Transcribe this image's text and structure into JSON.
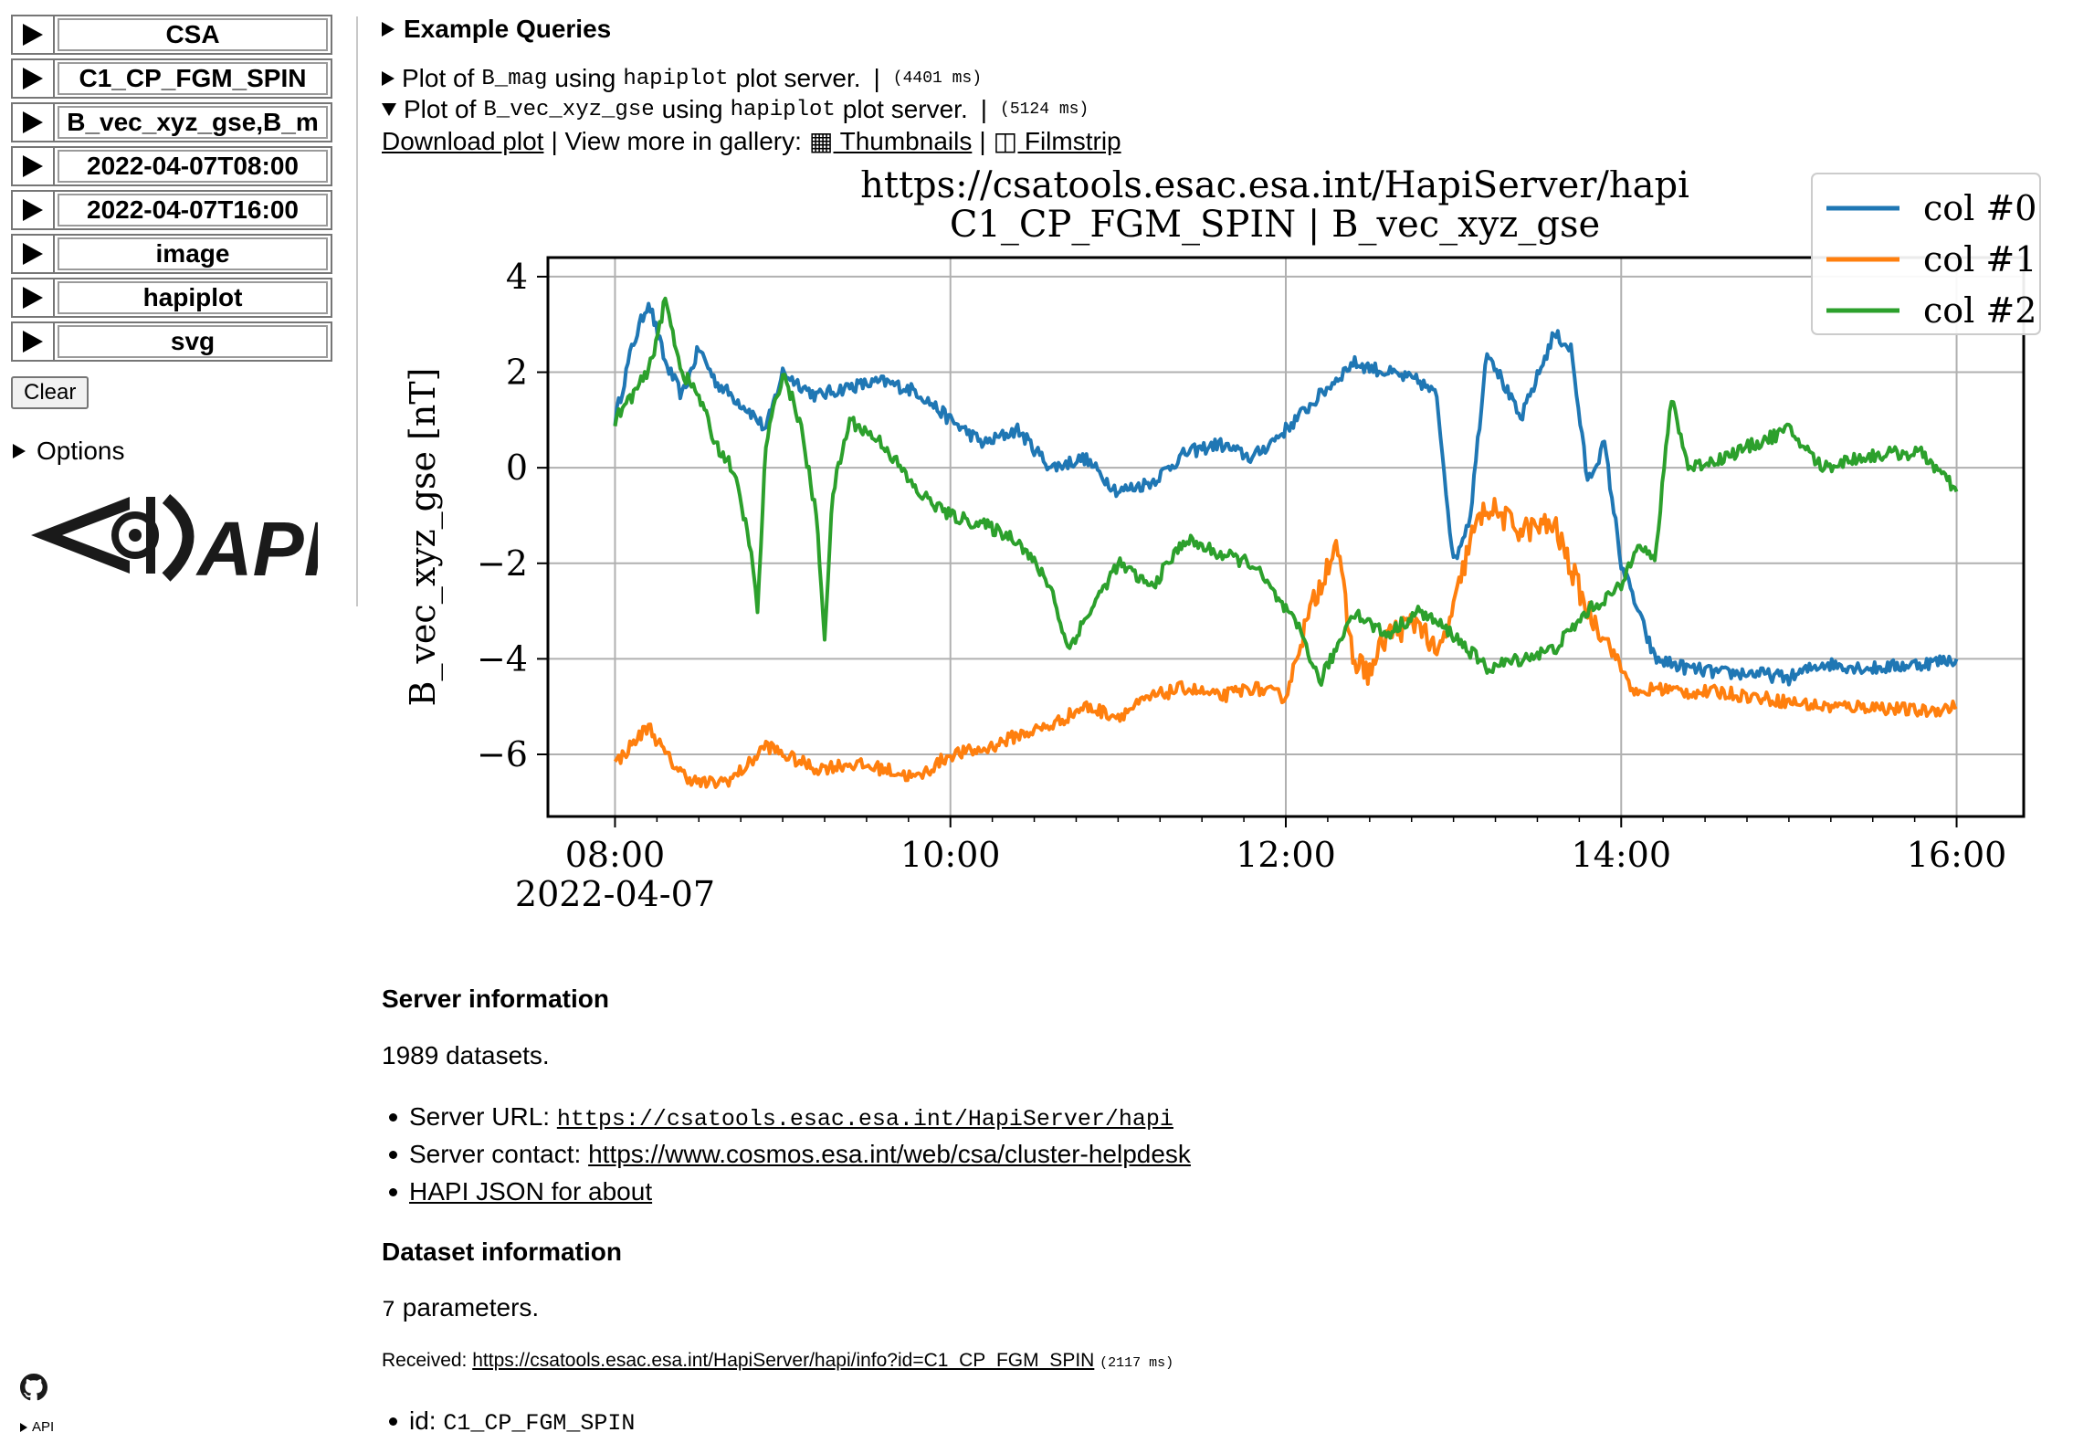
{
  "sidebar": {
    "selects": [
      "CSA",
      "C1_CP_FGM_SPIN",
      "B_vec_xyz_gse,B_m",
      "2022-04-07T08:00",
      "2022-04-07T16:00",
      "image",
      "hapiplot",
      "svg"
    ],
    "clear_label": "Clear",
    "options_label": "Options",
    "logo_text": "API",
    "footer_api_label": "API"
  },
  "examples": {
    "heading": "Example Queries",
    "q1": {
      "prefix": "Plot of",
      "param": "B_mag",
      "mid": "using",
      "server": "hapiplot",
      "suffix": "plot server.",
      "sep": "|",
      "timing": "(4401 ms)"
    },
    "q2": {
      "prefix": "Plot of",
      "param": "B_vec_xyz_gse",
      "mid": "using",
      "server": "hapiplot",
      "suffix": "plot server.",
      "sep": "|",
      "timing": "(5124 ms)"
    },
    "download_label": "Download plot",
    "gallery_prefix": "| View more in gallery:",
    "thumbnails_label": "▦ Thumbnails",
    "pipe": "|",
    "filmstrip_label": "◫ Filmstrip"
  },
  "chart_data": {
    "type": "line",
    "title": "https://csatools.esac.esa.int/HapiServer/hapi",
    "subtitle": "C1_CP_FGM_SPIN | B_vec_xyz_gse",
    "xlabel": "",
    "ylabel": "B_vec_xyz_gse [nT]",
    "x_ticks": [
      "08:00",
      "10:00",
      "12:00",
      "14:00",
      "16:00"
    ],
    "x_date_label": "2022-04-07",
    "xlim_hours": [
      7.6,
      16.4
    ],
    "ylim": [
      -7.3,
      4.4
    ],
    "y_ticks": [
      4,
      2,
      0,
      -2,
      -4,
      -6
    ],
    "y_tick_labels": [
      "4",
      "2",
      "0",
      "−2",
      "−4",
      "−6"
    ],
    "grid": true,
    "legend_position": "top-right",
    "series": [
      {
        "name": "col #0",
        "color": "#1f77b4",
        "x": [
          8.0,
          8.1,
          8.2,
          8.3,
          8.4,
          8.5,
          8.6,
          8.7,
          8.8,
          8.9,
          9.0,
          9.2,
          9.4,
          9.6,
          9.8,
          10.0,
          10.2,
          10.4,
          10.6,
          10.8,
          11.0,
          11.2,
          11.4,
          11.6,
          11.8,
          12.0,
          12.2,
          12.4,
          12.6,
          12.8,
          12.9,
          13.0,
          13.1,
          13.2,
          13.4,
          13.6,
          13.7,
          13.8,
          13.9,
          14.0,
          14.1,
          14.2,
          14.4,
          14.6,
          14.8,
          15.0,
          15.2,
          15.5,
          15.8,
          16.0
        ],
        "y": [
          1.0,
          2.5,
          3.5,
          2.2,
          1.5,
          2.5,
          1.8,
          1.5,
          1.2,
          0.8,
          2.0,
          1.5,
          1.7,
          1.8,
          1.6,
          1.0,
          0.5,
          0.8,
          0.0,
          0.2,
          -0.5,
          -0.3,
          0.3,
          0.5,
          0.2,
          0.8,
          1.5,
          2.2,
          2.0,
          1.8,
          1.5,
          -2.0,
          -1.0,
          2.5,
          1.0,
          2.8,
          2.5,
          -0.3,
          0.5,
          -2.0,
          -3.0,
          -4.0,
          -4.2,
          -4.3,
          -4.3,
          -4.4,
          -4.1,
          -4.2,
          -4.1,
          -4.0
        ]
      },
      {
        "name": "col #1",
        "color": "#ff7f0e",
        "x": [
          8.0,
          8.1,
          8.2,
          8.3,
          8.4,
          8.5,
          8.6,
          8.7,
          8.8,
          8.9,
          9.0,
          9.2,
          9.4,
          9.6,
          9.8,
          10.0,
          10.2,
          10.4,
          10.6,
          10.8,
          11.0,
          11.2,
          11.4,
          11.6,
          11.8,
          12.0,
          12.1,
          12.2,
          12.3,
          12.4,
          12.5,
          12.6,
          12.8,
          12.9,
          13.0,
          13.1,
          13.2,
          13.4,
          13.6,
          13.8,
          13.9,
          14.0,
          14.1,
          14.2,
          14.4,
          14.6,
          14.8,
          15.0,
          15.2,
          15.5,
          15.8,
          16.0
        ],
        "y": [
          -6.2,
          -5.8,
          -5.4,
          -6.0,
          -6.4,
          -6.6,
          -6.6,
          -6.5,
          -6.2,
          -5.8,
          -6.0,
          -6.3,
          -6.2,
          -6.3,
          -6.5,
          -6.0,
          -5.9,
          -5.6,
          -5.4,
          -5.0,
          -5.2,
          -4.8,
          -4.6,
          -4.8,
          -4.6,
          -4.8,
          -3.5,
          -2.5,
          -1.5,
          -4.0,
          -4.3,
          -3.5,
          -3.2,
          -4.0,
          -3.0,
          -1.5,
          -0.8,
          -1.3,
          -1.2,
          -3.0,
          -3.5,
          -4.2,
          -4.8,
          -4.6,
          -4.7,
          -4.7,
          -4.8,
          -4.9,
          -5.0,
          -5.0,
          -5.1,
          -5.0
        ]
      },
      {
        "name": "col #2",
        "color": "#2ca02c",
        "x": [
          8.0,
          8.1,
          8.2,
          8.3,
          8.4,
          8.5,
          8.6,
          8.7,
          8.8,
          8.85,
          8.9,
          9.0,
          9.1,
          9.2,
          9.25,
          9.3,
          9.4,
          9.6,
          9.8,
          10.0,
          10.2,
          10.4,
          10.6,
          10.7,
          10.8,
          11.0,
          11.2,
          11.4,
          11.6,
          11.8,
          12.0,
          12.1,
          12.2,
          12.3,
          12.4,
          12.6,
          12.8,
          13.0,
          13.2,
          13.4,
          13.6,
          13.8,
          14.0,
          14.1,
          14.2,
          14.3,
          14.4,
          14.6,
          14.8,
          15.0,
          15.2,
          15.4,
          15.6,
          15.8,
          16.0
        ],
        "y": [
          1.0,
          1.5,
          2.0,
          3.5,
          2.0,
          1.5,
          0.5,
          0.0,
          -1.5,
          -3.0,
          0.5,
          2.0,
          1.0,
          -1.0,
          -3.5,
          -0.5,
          1.0,
          0.5,
          -0.5,
          -1.0,
          -1.2,
          -1.5,
          -2.5,
          -3.8,
          -3.2,
          -2.0,
          -2.5,
          -1.5,
          -1.8,
          -2.0,
          -3.0,
          -3.5,
          -4.5,
          -3.8,
          -3.0,
          -3.5,
          -3.0,
          -3.5,
          -4.2,
          -4.0,
          -3.8,
          -3.0,
          -2.5,
          -1.5,
          -2.0,
          1.5,
          0.0,
          0.2,
          0.5,
          0.8,
          0.0,
          0.2,
          0.3,
          0.3,
          -0.5
        ]
      }
    ]
  },
  "server_info": {
    "heading": "Server information",
    "count": "1989 datasets.",
    "url_label": "Server URL:",
    "url": "https://csatools.esac.esa.int/HapiServer/hapi",
    "contact_label": "Server contact:",
    "contact": "https://www.cosmos.esa.int/web/csa/cluster-helpdesk",
    "json_label": "HAPI JSON for about"
  },
  "dataset_info": {
    "heading": "Dataset information",
    "param_count_num": "7",
    "param_count_text": "parameters.",
    "received_label": "Received:",
    "received_url": "https://csatools.esac.esa.int/HapiServer/hapi/info?id=C1_CP_FGM_SPIN",
    "received_timing": "(2117 ms)",
    "id_label": "id:",
    "id_value": "C1_CP_FGM_SPIN"
  }
}
